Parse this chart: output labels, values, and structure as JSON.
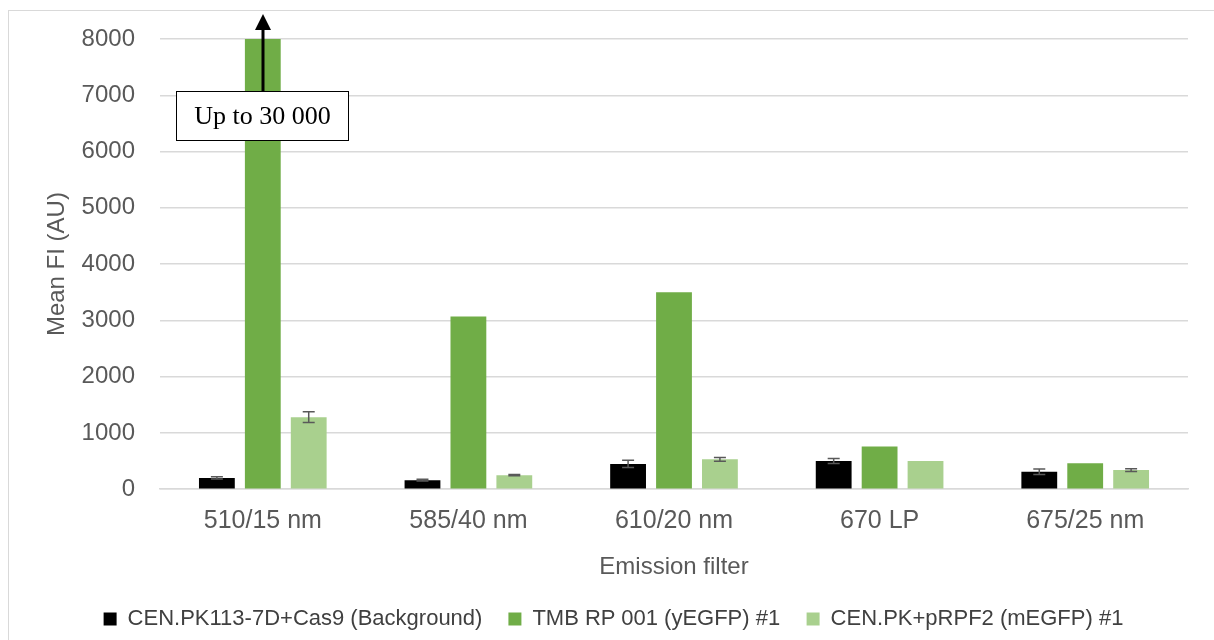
{
  "chart_data": {
    "type": "bar",
    "xlabel": "Emission filter",
    "ylabel": "Mean FI (AU)",
    "categories": [
      "510/15 nm",
      "585/40 nm",
      "610/20 nm",
      "670 LP",
      "675/25 nm"
    ],
    "series": [
      {
        "name": "CEN.PK113-7D+Cas9 (Background)",
        "color": "#000000",
        "values": [
          200,
          160,
          450,
          500,
          310
        ],
        "errors": [
          20,
          15,
          65,
          45,
          50
        ]
      },
      {
        "name": "TMB RP 001 (yEGFP) #1",
        "color": "#70ad47",
        "values": [
          8000,
          3070,
          3500,
          760,
          460
        ]
      },
      {
        "name": "CEN.PK+pRPF2 (mEGFP) #1",
        "color": "#a9d08e",
        "values": [
          1280,
          250,
          530,
          500,
          340
        ],
        "errors": [
          95,
          10,
          35,
          null,
          25
        ]
      }
    ],
    "ylim": [
      0,
      8000
    ],
    "yticks": [
      0,
      1000,
      2000,
      3000,
      4000,
      5000,
      6000,
      7000,
      8000
    ],
    "grid": "y",
    "legend": "bottom",
    "annotations": [
      {
        "text": "Up to 30 000",
        "x": "510/15 nm",
        "y": 8000
      }
    ]
  }
}
